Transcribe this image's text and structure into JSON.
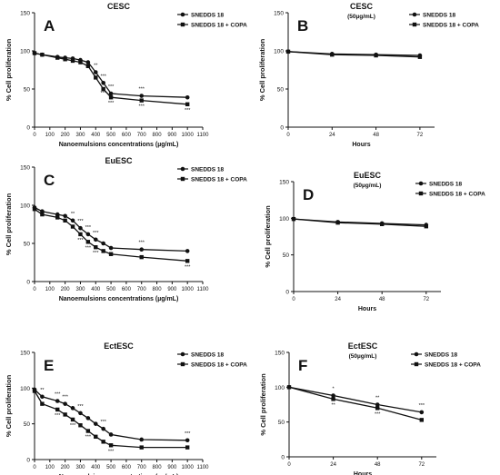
{
  "chart_data": [
    {
      "type": "line",
      "panel_label": "A",
      "title": "CESC",
      "subtitle": "",
      "xlabel": "Nanoemulsions concentrations (µg/mL)",
      "ylabel": "% Cell proliferation",
      "xlim": [
        0,
        1100
      ],
      "ylim": [
        0,
        150
      ],
      "xticks": [
        "0",
        "100",
        "200",
        "300",
        "400",
        "500",
        "600",
        "700",
        "800",
        "900",
        "1000",
        "1100"
      ],
      "yticks": [
        "0",
        "50",
        "100",
        "150"
      ],
      "x": [
        0,
        50,
        150,
        200,
        250,
        300,
        350,
        400,
        450,
        500,
        700,
        1000
      ],
      "series": [
        {
          "name": "SNEDDS 18",
          "marker": "circle",
          "values": [
            97,
            95,
            92,
            91,
            90,
            88,
            85,
            72,
            58,
            44,
            41,
            39
          ]
        },
        {
          "name": "SNEDDS 18 + COPA",
          "marker": "square",
          "values": [
            97,
            95,
            91,
            89,
            87,
            85,
            80,
            65,
            50,
            39,
            35,
            30
          ]
        }
      ],
      "annotations": [
        "**",
        "***",
        "***",
        "***",
        "***",
        "***",
        "***",
        "***"
      ],
      "legend_position": "top-right",
      "grid": false
    },
    {
      "type": "line",
      "panel_label": "B",
      "title": "CESC",
      "subtitle": "(50µg/mL)",
      "xlabel": "Hours",
      "ylabel": "% Cell proliferation",
      "xlim": [
        0,
        80
      ],
      "ylim": [
        0,
        150
      ],
      "xticks": [
        "0",
        "24",
        "48",
        "72"
      ],
      "yticks": [
        "0",
        "50",
        "100",
        "150"
      ],
      "x": [
        0,
        24,
        48,
        72
      ],
      "series": [
        {
          "name": "SNEDDS 18",
          "marker": "circle",
          "values": [
            99,
            96,
            95,
            94
          ]
        },
        {
          "name": "SNEDDS 18 + COPA",
          "marker": "square",
          "values": [
            99,
            95,
            94,
            92
          ]
        }
      ],
      "annotations": [],
      "legend_position": "top-right",
      "grid": false
    },
    {
      "type": "line",
      "panel_label": "C",
      "title": "EuESC",
      "subtitle": "",
      "xlabel": "Nanoemulsions concentrations (µg/mL)",
      "ylabel": "% Cell proliferation",
      "xlim": [
        0,
        1100
      ],
      "ylim": [
        0,
        150
      ],
      "xticks": [
        "0",
        "100",
        "200",
        "300",
        "400",
        "500",
        "600",
        "700",
        "800",
        "900",
        "1000",
        "1100"
      ],
      "yticks": [
        "0",
        "50",
        "100",
        "150"
      ],
      "x": [
        0,
        50,
        150,
        200,
        250,
        300,
        350,
        400,
        450,
        500,
        700,
        1000
      ],
      "series": [
        {
          "name": "SNEDDS 18",
          "marker": "circle",
          "values": [
            97,
            92,
            88,
            86,
            80,
            70,
            62,
            55,
            50,
            44,
            42,
            40
          ]
        },
        {
          "name": "SNEDDS 18 + COPA",
          "marker": "square",
          "values": [
            95,
            88,
            84,
            80,
            72,
            62,
            52,
            45,
            40,
            36,
            32,
            27
          ]
        }
      ],
      "annotations": [
        "**",
        "***",
        "***",
        "***",
        "***",
        "***",
        "***",
        "***",
        "***"
      ],
      "legend_position": "top-right",
      "grid": false
    },
    {
      "type": "line",
      "panel_label": "D",
      "title": "EuESC",
      "subtitle": "(50µg/mL)",
      "xlabel": "Hours",
      "ylabel": "% Cell proliferation",
      "xlim": [
        0,
        80
      ],
      "ylim": [
        0,
        150
      ],
      "xticks": [
        "0",
        "24",
        "48",
        "72"
      ],
      "yticks": [
        "0",
        "50",
        "100",
        "150"
      ],
      "x": [
        0,
        24,
        48,
        72
      ],
      "series": [
        {
          "name": "SNEDDS 18",
          "marker": "circle",
          "values": [
            99,
            95,
            93,
            91
          ]
        },
        {
          "name": "SNEDDS 18 + COPA",
          "marker": "square",
          "values": [
            99,
            94,
            92,
            89
          ]
        }
      ],
      "annotations": [],
      "legend_position": "top-right",
      "grid": false
    },
    {
      "type": "line",
      "panel_label": "E",
      "title": "EctESC",
      "subtitle": "",
      "xlabel": "Nanoemulsions concentrations (µg/mL)",
      "ylabel": "% Cell proliferation",
      "xlim": [
        0,
        1100
      ],
      "ylim": [
        0,
        150
      ],
      "xticks": [
        "0",
        "100",
        "200",
        "300",
        "400",
        "500",
        "600",
        "700",
        "800",
        "900",
        "1000",
        "1100"
      ],
      "yticks": [
        "0",
        "50",
        "100",
        "150"
      ],
      "x": [
        0,
        50,
        150,
        200,
        250,
        300,
        350,
        400,
        450,
        500,
        700,
        1000
      ],
      "series": [
        {
          "name": "SNEDDS 18",
          "marker": "circle",
          "values": [
            98,
            88,
            82,
            78,
            72,
            65,
            58,
            50,
            43,
            35,
            28,
            27
          ]
        },
        {
          "name": "SNEDDS 18 + COPA",
          "marker": "square",
          "values": [
            96,
            78,
            70,
            63,
            56,
            48,
            40,
            32,
            25,
            20,
            17,
            17
          ]
        }
      ],
      "annotations": [
        "**",
        "***",
        "***",
        "***",
        "***",
        "***",
        "***",
        "***",
        "***",
        "***"
      ],
      "legend_position": "top-right",
      "grid": false
    },
    {
      "type": "line",
      "panel_label": "F",
      "title": "EctESC",
      "subtitle": "(50µg/mL)",
      "xlabel": "Hours",
      "ylabel": "% Cell proliferation",
      "xlim": [
        0,
        80
      ],
      "ylim": [
        0,
        150
      ],
      "xticks": [
        "0",
        "24",
        "48",
        "72"
      ],
      "yticks": [
        "0",
        "50",
        "100",
        "150"
      ],
      "x": [
        0,
        24,
        48,
        72
      ],
      "series": [
        {
          "name": "SNEDDS 18",
          "marker": "circle",
          "values": [
            100,
            88,
            75,
            64
          ]
        },
        {
          "name": "SNEDDS 18 + COPA",
          "marker": "square",
          "values": [
            100,
            83,
            70,
            53
          ]
        }
      ],
      "annotations": [
        "*",
        "**",
        "**",
        "***",
        "***"
      ],
      "legend_position": "top-right",
      "grid": false
    }
  ]
}
